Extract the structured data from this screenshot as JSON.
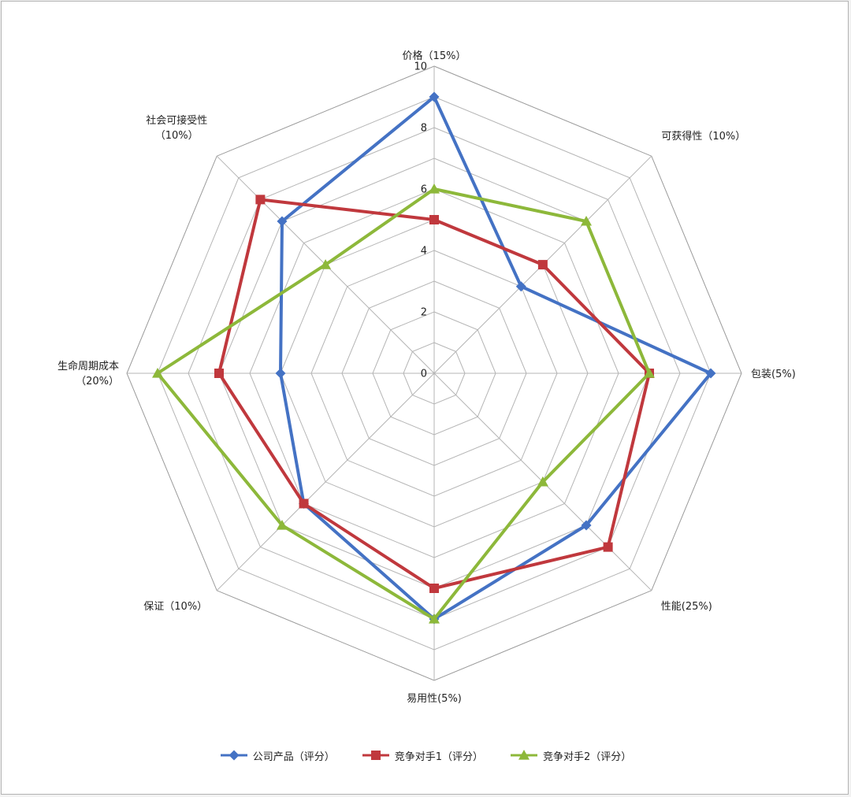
{
  "chart_data": {
    "type": "radar",
    "title": "",
    "categories": [
      "价格（15%）",
      "可获得性（10%）",
      "包装(5%)",
      "性能(25%)",
      "易用性(5%)",
      "保证（10%）",
      "生命周期成本（20%）",
      "社会可接受性（10%）"
    ],
    "category_lines": [
      [
        "价格（15%）"
      ],
      [
        "可获得性（10%）"
      ],
      [
        "包装(5%)"
      ],
      [
        "性能(25%)"
      ],
      [
        "易用性(5%)"
      ],
      [
        "保证（10%）"
      ],
      [
        "生命周期成本",
        "（20%）"
      ],
      [
        "社会可接受性",
        "（10%）"
      ]
    ],
    "rlim": [
      0,
      10
    ],
    "ticks": [
      "0",
      "2",
      "4",
      "6",
      "8",
      "10"
    ],
    "grid": true,
    "legend_position": "bottom",
    "series": [
      {
        "name": "公司产品（评分）",
        "color": "#4472c4",
        "marker": "diamond",
        "values": [
          9,
          4,
          9,
          7,
          8,
          6,
          5,
          7
        ]
      },
      {
        "name": "竞争对手1（评分）",
        "color": "#c0383d",
        "marker": "square",
        "values": [
          5,
          5,
          7,
          8,
          7,
          6,
          7,
          8
        ]
      },
      {
        "name": "竞争对手2（评分）",
        "color": "#8db83a",
        "marker": "triangle",
        "values": [
          6,
          7,
          7,
          5,
          8,
          7,
          9,
          5
        ]
      }
    ]
  }
}
